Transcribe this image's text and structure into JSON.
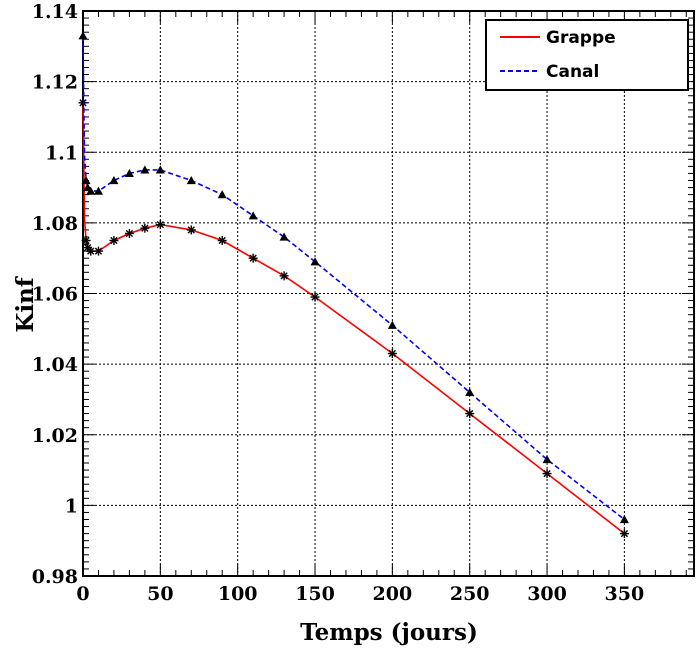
{
  "chart_data": {
    "type": "line",
    "title": "",
    "xlabel": "Temps (jours)",
    "ylabel": "Kinf",
    "xlim": [
      0,
      395
    ],
    "ylim": [
      0.98,
      1.14
    ],
    "x_ticks": [
      0,
      50,
      100,
      150,
      200,
      250,
      300,
      350
    ],
    "x_tick_labels": [
      "0",
      "50",
      "100",
      "150",
      "200",
      "250",
      "300",
      "350"
    ],
    "y_ticks": [
      0.98,
      1.0,
      1.02,
      1.04,
      1.06,
      1.08,
      1.1,
      1.12,
      1.14
    ],
    "y_tick_labels": [
      "0.98",
      "1",
      "1.02",
      "1.04",
      "1.06",
      "1.08",
      "1.1",
      "1.12",
      "1.14"
    ],
    "grid": true,
    "legend_position": "top-right",
    "series": [
      {
        "name": "Grappe",
        "color": "#ff0000",
        "line_style": "solid",
        "marker": "asterisk",
        "x": [
          0,
          0.5,
          1,
          2,
          3,
          5,
          10,
          20,
          30,
          40,
          50,
          70,
          90,
          110,
          130,
          150,
          200,
          250,
          300,
          350
        ],
        "y": [
          1.114,
          1.098,
          1.081,
          1.075,
          1.073,
          1.072,
          1.072,
          1.075,
          1.077,
          1.0785,
          1.0795,
          1.078,
          1.075,
          1.07,
          1.065,
          1.059,
          1.043,
          1.026,
          1.009,
          0.992
        ]
      },
      {
        "name": "Canal",
        "color": "#0000ff",
        "line_style": "dashed",
        "marker": "triangle",
        "x": [
          0,
          0.5,
          1,
          2,
          3,
          5,
          10,
          20,
          30,
          40,
          50,
          70,
          90,
          110,
          130,
          150,
          200,
          250,
          300,
          350
        ],
        "y": [
          1.133,
          1.114,
          1.099,
          1.092,
          1.09,
          1.089,
          1.089,
          1.092,
          1.094,
          1.095,
          1.095,
          1.092,
          1.088,
          1.082,
          1.076,
          1.069,
          1.051,
          1.032,
          1.013,
          0.996
        ]
      }
    ]
  }
}
